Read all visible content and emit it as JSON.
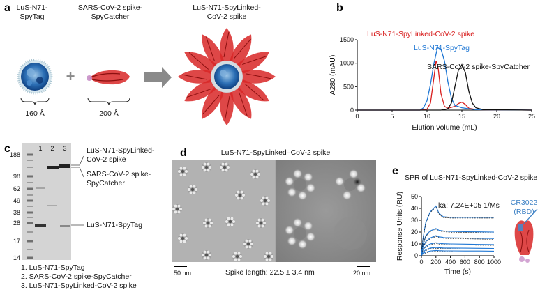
{
  "panel_a": {
    "letter": "a",
    "item1": [
      "LuS-N71-",
      "SpyTag"
    ],
    "item2": [
      "SARS-CoV-2 spike-",
      "SpyCatcher"
    ],
    "item3": [
      "LuS-N71-SpyLinked-",
      "CoV-2 spike"
    ],
    "dim1": "160 Å",
    "dim2": "200 Å",
    "plus": "+"
  },
  "panel_b": {
    "letter": "b",
    "legend_red": "LuS-N71-SpyLinked-CoV-2 spike",
    "legend_blue": "LuS-N71-SpyTag",
    "legend_black": "SARS-CoV-2 spike-SpyCatcher",
    "colors": {
      "red": "#d81e1e",
      "blue": "#1f77d4",
      "black": "#111111"
    }
  },
  "panel_c": {
    "letter": "c",
    "lanes": [
      "1",
      "2",
      "3"
    ],
    "markers": [
      "188",
      "98",
      "62",
      "49",
      "38",
      "28",
      "17",
      "14"
    ],
    "band_labels": [
      [
        "LuS-N71-SpyLinked-",
        "CoV-2 spike"
      ],
      [
        "SARS-CoV-2 spike-",
        "SpyCatcher"
      ],
      [
        "LuS-N71-SpyTag"
      ]
    ],
    "legend": [
      "1. LuS-N71-SpyTag",
      "2. SARS-CoV-2 spike-SpyCatcher",
      "3. LuS-N71-SpyLinked-CoV-2 spike"
    ]
  },
  "panel_d": {
    "letter": "d",
    "title": "LuS-N71-SpyLinked–CoV-2 spike",
    "scale_left": "50 nm",
    "scale_right": "20 nm",
    "spike_length": "Spike length:  22.5 ± 3.4 nm"
  },
  "panel_e": {
    "letter": "e",
    "title": "SPR of LuS-N71-SpyLinked-CoV-2 spike",
    "ka": "ka: 7.24E+05 1/Ms",
    "antibody": [
      "CR3022",
      "(RBD)"
    ]
  },
  "chart_data": [
    {
      "type": "line",
      "panel": "b",
      "xlabel": "Elution volume (mL)",
      "ylabel": "A280 (mAU)",
      "xlim": [
        0,
        25
      ],
      "ylim": [
        0,
        1500
      ],
      "xticks": [
        0,
        5,
        10,
        15,
        20,
        25
      ],
      "yticks": [
        0,
        500,
        1000,
        1500
      ],
      "grid": false,
      "series": [
        {
          "name": "LuS-N71-SpyLinked-CoV-2 spike",
          "color": "#d81e1e",
          "x": [
            0,
            9,
            10,
            10.5,
            11,
            11.3,
            11.6,
            12,
            12.5,
            13,
            14,
            14.5,
            15,
            15.5,
            16,
            17,
            25
          ],
          "y": [
            0,
            0,
            20,
            150,
            700,
            1050,
            900,
            350,
            80,
            40,
            80,
            140,
            170,
            120,
            40,
            10,
            0
          ]
        },
        {
          "name": "LuS-N71-SpyTag",
          "color": "#1f77d4",
          "x": [
            0,
            9,
            9.5,
            10,
            10.5,
            11,
            11.5,
            12,
            12.5,
            13,
            13.5,
            14,
            15,
            16,
            17,
            25
          ],
          "y": [
            0,
            0,
            50,
            200,
            550,
            1000,
            1330,
            1300,
            1050,
            600,
            250,
            100,
            50,
            30,
            10,
            0
          ]
        },
        {
          "name": "SARS-CoV-2 spike-SpyCatcher",
          "color": "#111111",
          "x": [
            0,
            12,
            13,
            13.5,
            14,
            14.5,
            15,
            15.5,
            16,
            16.5,
            17,
            18,
            25
          ],
          "y": [
            0,
            0,
            30,
            150,
            500,
            850,
            970,
            800,
            400,
            150,
            50,
            10,
            0
          ]
        }
      ]
    },
    {
      "type": "line",
      "panel": "e",
      "xlabel": "Time (s)",
      "ylabel": "Response Units (RU)",
      "xlim": [
        0,
        1000
      ],
      "ylim": [
        0,
        50
      ],
      "xticks": [
        0,
        200,
        400,
        600,
        800,
        1000
      ],
      "yticks": [
        0,
        10,
        20,
        30,
        40,
        50
      ],
      "grid": false,
      "series": [
        {
          "color": "#1f77d4",
          "x": [
            0,
            20,
            60,
            120,
            200,
            240,
            300,
            400,
            600,
            800,
            1000
          ],
          "y": [
            0,
            14,
            28,
            37,
            42,
            36,
            33,
            32.5,
            32.5,
            32.5,
            32.5
          ]
        },
        {
          "color": "#1f77d4",
          "x": [
            0,
            20,
            60,
            120,
            200,
            240,
            300,
            400,
            600,
            800,
            1000
          ],
          "y": [
            0,
            9,
            17,
            21,
            23,
            21.5,
            21,
            20.5,
            20.3,
            20.2,
            20
          ]
        },
        {
          "color": "#1f77d4",
          "x": [
            0,
            20,
            60,
            120,
            200,
            240,
            300,
            400,
            600,
            800,
            1000
          ],
          "y": [
            0,
            7,
            12,
            15,
            17,
            16,
            15.5,
            15.2,
            15,
            14.8,
            14.6
          ]
        },
        {
          "color": "#1f77d4",
          "x": [
            0,
            20,
            60,
            120,
            200,
            240,
            300,
            400,
            600,
            800,
            1000
          ],
          "y": [
            0,
            5,
            8,
            10,
            11,
            10.5,
            10.2,
            10,
            9.8,
            9.6,
            9.5
          ]
        },
        {
          "color": "#1f77d4",
          "x": [
            0,
            20,
            60,
            120,
            200,
            240,
            300,
            400,
            600,
            800,
            1000
          ],
          "y": [
            0,
            3,
            5,
            6.5,
            7,
            6.8,
            6.6,
            6.5,
            6.4,
            6.3,
            6.2
          ]
        },
        {
          "color": "#1f77d4",
          "x": [
            0,
            20,
            60,
            120,
            200,
            240,
            300,
            400,
            600,
            800,
            1000
          ],
          "y": [
            0,
            2,
            3,
            4,
            4.5,
            4.3,
            4.2,
            4.1,
            4,
            4,
            3.9
          ]
        }
      ]
    }
  ]
}
